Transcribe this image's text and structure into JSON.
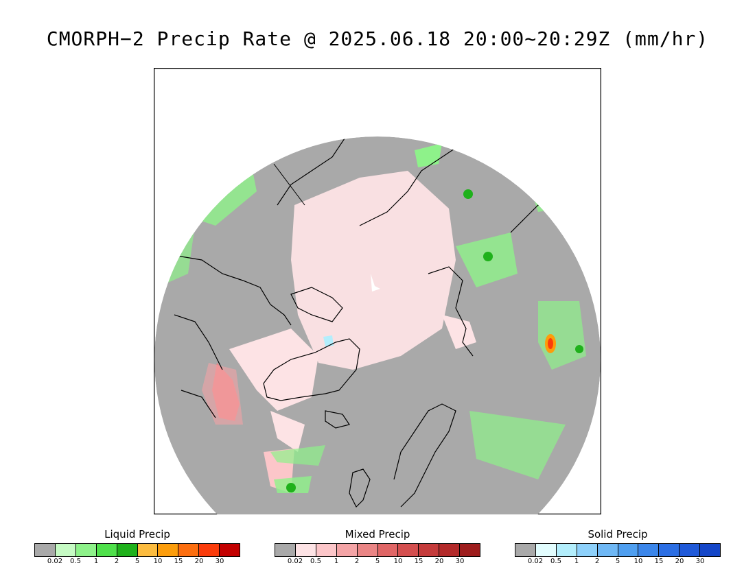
{
  "title": "CMORPH−2 Precip Rate @ 2025.06.18 20:00~20:29Z (mm/hr)",
  "map": {
    "projection": "north polar stereographic",
    "background_color": "#a9a9a9",
    "coastline_color": "#000000"
  },
  "legends": [
    {
      "id": "liquid",
      "title": "Liquid Precip",
      "colors": [
        "#a9a9a9",
        "#c6fbc4",
        "#8ef28a",
        "#4fe14b",
        "#1fb11b",
        "#fcbc3f",
        "#fc9d0b",
        "#fc6e0f",
        "#fb3c0b",
        "#c30000"
      ],
      "ticks": [
        "0.02",
        "0.5",
        "1",
        "2",
        "5",
        "10",
        "15",
        "20",
        "30"
      ]
    },
    {
      "id": "mixed",
      "title": "Mixed Precip",
      "colors": [
        "#a9a9a9",
        "#fde3e5",
        "#fcc6c9",
        "#f4a4a6",
        "#ea8585",
        "#e06666",
        "#d44f4f",
        "#c53b3b",
        "#b32a2a",
        "#9e1d1d"
      ],
      "ticks": [
        "0.02",
        "0.5",
        "1",
        "2",
        "5",
        "10",
        "15",
        "20",
        "30"
      ]
    },
    {
      "id": "solid",
      "title": "Solid Precip",
      "colors": [
        "#a9a9a9",
        "#e2fdfe",
        "#b3eefc",
        "#8ed1fb",
        "#6fb8f5",
        "#4f9ff0",
        "#3b86ea",
        "#2b6ee3",
        "#1f59d8",
        "#1446c8"
      ],
      "ticks": [
        "0.02",
        "0.5",
        "1",
        "2",
        "5",
        "10",
        "15",
        "20",
        "30"
      ]
    }
  ]
}
